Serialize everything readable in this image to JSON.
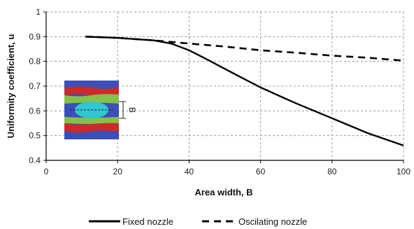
{
  "chart_data": {
    "type": "line",
    "title": "",
    "xlabel": "Area width, B",
    "ylabel": "Uniformity coefficient, u",
    "xlim": [
      0,
      100
    ],
    "ylim": [
      0.4,
      1.0
    ],
    "x_ticks": [
      "0",
      "20",
      "40",
      "60",
      "80",
      "100"
    ],
    "y_ticks": [
      "0.4",
      "0.5",
      "0.6",
      "0.7",
      "0.8",
      "0.9",
      "1"
    ],
    "grid": true,
    "legend_position": "bottom",
    "series": [
      {
        "name": "Fixed nozzle",
        "style": "solid",
        "x": [
          11,
          20,
          25,
          30,
          35,
          40,
          45,
          50,
          55,
          60,
          65,
          70,
          75,
          80,
          85,
          90,
          95,
          100
        ],
        "y": [
          0.9,
          0.895,
          0.89,
          0.885,
          0.872,
          0.845,
          0.808,
          0.77,
          0.732,
          0.695,
          0.662,
          0.63,
          0.6,
          0.57,
          0.54,
          0.51,
          0.485,
          0.46
        ]
      },
      {
        "name": "Oscilating nozzle",
        "style": "dashed",
        "x": [
          11,
          20,
          30,
          40,
          50,
          60,
          70,
          80,
          90,
          100
        ],
        "y": [
          0.9,
          0.895,
          0.885,
          0.872,
          0.86,
          0.845,
          0.835,
          0.823,
          0.815,
          0.803
        ]
      }
    ],
    "inset": {
      "label": "B",
      "colors": {
        "outer": "#3a4fb8",
        "red": "#cc2a2a",
        "green": "#86c04a",
        "core": "#31c6d2"
      }
    }
  }
}
